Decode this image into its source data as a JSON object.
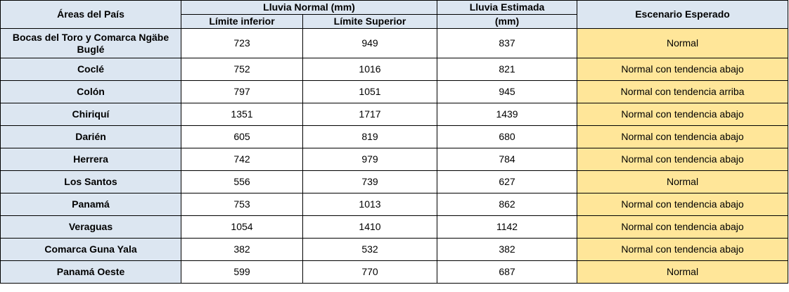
{
  "table": {
    "headers": {
      "area": "Áreas del País",
      "normal_group": "Lluvia Normal (mm)",
      "lower": "Límite inferior",
      "upper": "Límite Superior",
      "estimated_line1": "Lluvia Estimada",
      "estimated_line2": "(mm)",
      "scenario": "Escenario Esperado"
    },
    "rows": [
      {
        "area": "Bocas del Toro y Comarca Ngäbe Buglé",
        "lower": "723",
        "upper": "949",
        "estimated": "837",
        "scenario": "Normal"
      },
      {
        "area": "Coclé",
        "lower": "752",
        "upper": "1016",
        "estimated": "821",
        "scenario": "Normal con tendencia abajo"
      },
      {
        "area": "Colón",
        "lower": "797",
        "upper": "1051",
        "estimated": "945",
        "scenario": "Normal con tendencia arriba"
      },
      {
        "area": "Chiriquí",
        "lower": "1351",
        "upper": "1717",
        "estimated": "1439",
        "scenario": "Normal con tendencia abajo"
      },
      {
        "area": "Darién",
        "lower": "605",
        "upper": "819",
        "estimated": "680",
        "scenario": "Normal con tendencia abajo"
      },
      {
        "area": "Herrera",
        "lower": "742",
        "upper": "979",
        "estimated": "784",
        "scenario": "Normal con tendencia abajo"
      },
      {
        "area": "Los Santos",
        "lower": "556",
        "upper": "739",
        "estimated": "627",
        "scenario": "Normal"
      },
      {
        "area": "Panamá",
        "lower": "753",
        "upper": "1013",
        "estimated": "862",
        "scenario": "Normal con tendencia abajo"
      },
      {
        "area": "Veraguas",
        "lower": "1054",
        "upper": "1410",
        "estimated": "1142",
        "scenario": "Normal con tendencia abajo"
      },
      {
        "area": "Comarca Guna Yala",
        "lower": "382",
        "upper": "532",
        "estimated": "382",
        "scenario": "Normal con tendencia abajo"
      },
      {
        "area": "Panamá Oeste",
        "lower": "599",
        "upper": "770",
        "estimated": "687",
        "scenario": "Normal"
      }
    ],
    "colors": {
      "header_bg": "#dce6f1",
      "scenario_bg": "#ffe699",
      "border": "#000000"
    }
  }
}
